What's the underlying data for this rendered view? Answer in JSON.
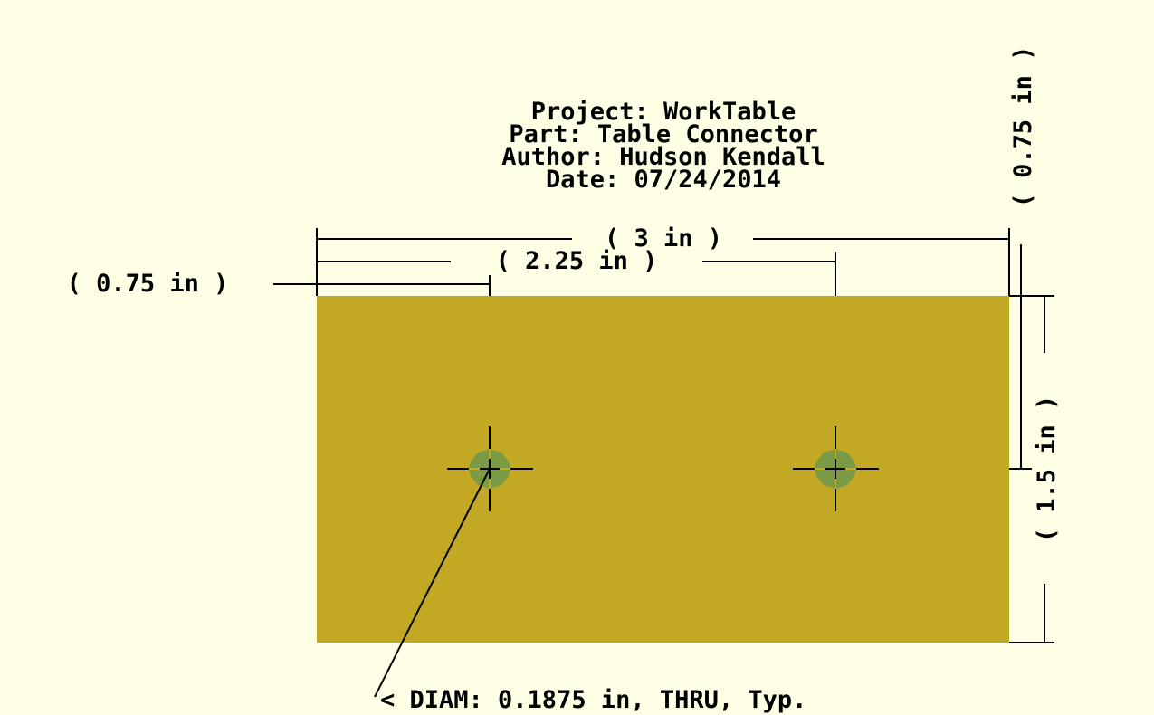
{
  "title_block": {
    "project": "Project: WorkTable",
    "part": "Part: Table Connector",
    "author": "Author: Hudson Kendall",
    "date": "Date: 07/24/2014"
  },
  "dimensions": {
    "overall_width": "( 3 in )",
    "hole_spacing": "( 2.25 in )",
    "hole_offset_x": "( 0.75 in )",
    "hole_offset_y": "( 0.75 in )",
    "overall_height": "( 1.5 in )"
  },
  "callout": {
    "hole_note": "< DIAM: 0.1875 in, THRU, Typ."
  },
  "colors": {
    "background": "#ffffe5",
    "plate": "#c2a823",
    "hole": "#7a9a46",
    "line": "#000000"
  }
}
